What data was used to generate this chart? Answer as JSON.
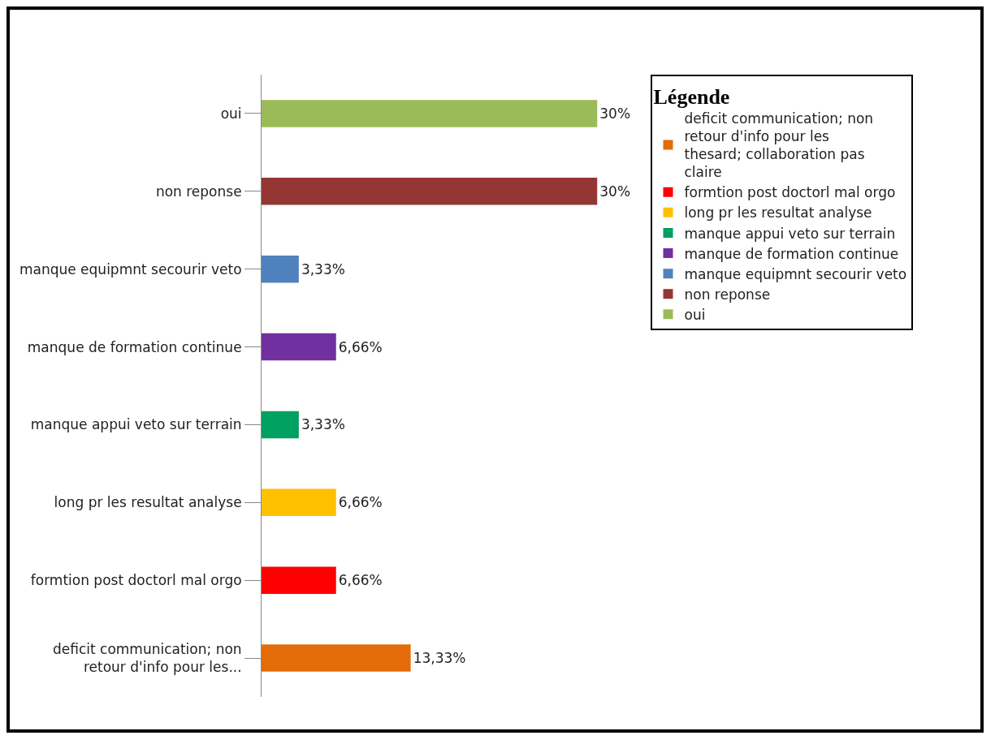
{
  "chart_data": {
    "type": "bar",
    "orientation": "horizontal",
    "legend_title": "Légende",
    "legend": "right",
    "grid": false,
    "categories": [
      "oui",
      "non reponse",
      "manque equipmnt secourir veto",
      "manque de formation continue",
      "manque appui veto sur terrain",
      "long pr les resultat analyse",
      "formtion post doctorl mal orgo",
      "deficit communication; non retour d'info pour les..."
    ],
    "series": [
      {
        "name": "deficit communication; non retour d'info pour les thesard; collaboration pas claire",
        "color": "#e36c09",
        "values": [
          null,
          null,
          null,
          null,
          null,
          null,
          null,
          13.33
        ],
        "value_labels": [
          null,
          null,
          null,
          null,
          null,
          null,
          null,
          "13,33%"
        ]
      },
      {
        "name": "formtion post doctorl mal orgo",
        "color": "#ff0000",
        "values": [
          null,
          null,
          null,
          null,
          null,
          null,
          6.66,
          null
        ],
        "value_labels": [
          null,
          null,
          null,
          null,
          null,
          null,
          "6,66%",
          null
        ]
      },
      {
        "name": "long pr les resultat analyse",
        "color": "#ffc000",
        "values": [
          null,
          null,
          null,
          null,
          null,
          6.66,
          null,
          null
        ],
        "value_labels": [
          null,
          null,
          null,
          null,
          null,
          "6,66%",
          null,
          null
        ]
      },
      {
        "name": "manque appui veto sur terrain",
        "color": "#00a060",
        "values": [
          null,
          null,
          null,
          null,
          3.33,
          null,
          null,
          null
        ],
        "value_labels": [
          null,
          null,
          null,
          null,
          "3,33%",
          null,
          null,
          null
        ]
      },
      {
        "name": "manque de formation continue",
        "color": "#7030a0",
        "values": [
          null,
          null,
          null,
          6.66,
          null,
          null,
          null,
          null
        ],
        "value_labels": [
          null,
          null,
          null,
          "6,66%",
          null,
          null,
          null,
          null
        ]
      },
      {
        "name": "manque equipmnt secourir veto",
        "color": "#4f81bd",
        "values": [
          null,
          null,
          3.33,
          null,
          null,
          null,
          null,
          null
        ],
        "value_labels": [
          null,
          null,
          "3,33%",
          null,
          null,
          null,
          null,
          null
        ]
      },
      {
        "name": "non reponse",
        "color": "#943634",
        "values": [
          null,
          30,
          null,
          null,
          null,
          null,
          null,
          null
        ],
        "value_labels": [
          null,
          "30%",
          null,
          null,
          null,
          null,
          null,
          null
        ]
      },
      {
        "name": "oui",
        "color": "#9bbb59",
        "values": [
          30,
          null,
          null,
          null,
          null,
          null,
          null,
          null
        ],
        "value_labels": [
          "30%",
          null,
          null,
          null,
          null,
          null,
          null,
          null
        ]
      }
    ]
  }
}
